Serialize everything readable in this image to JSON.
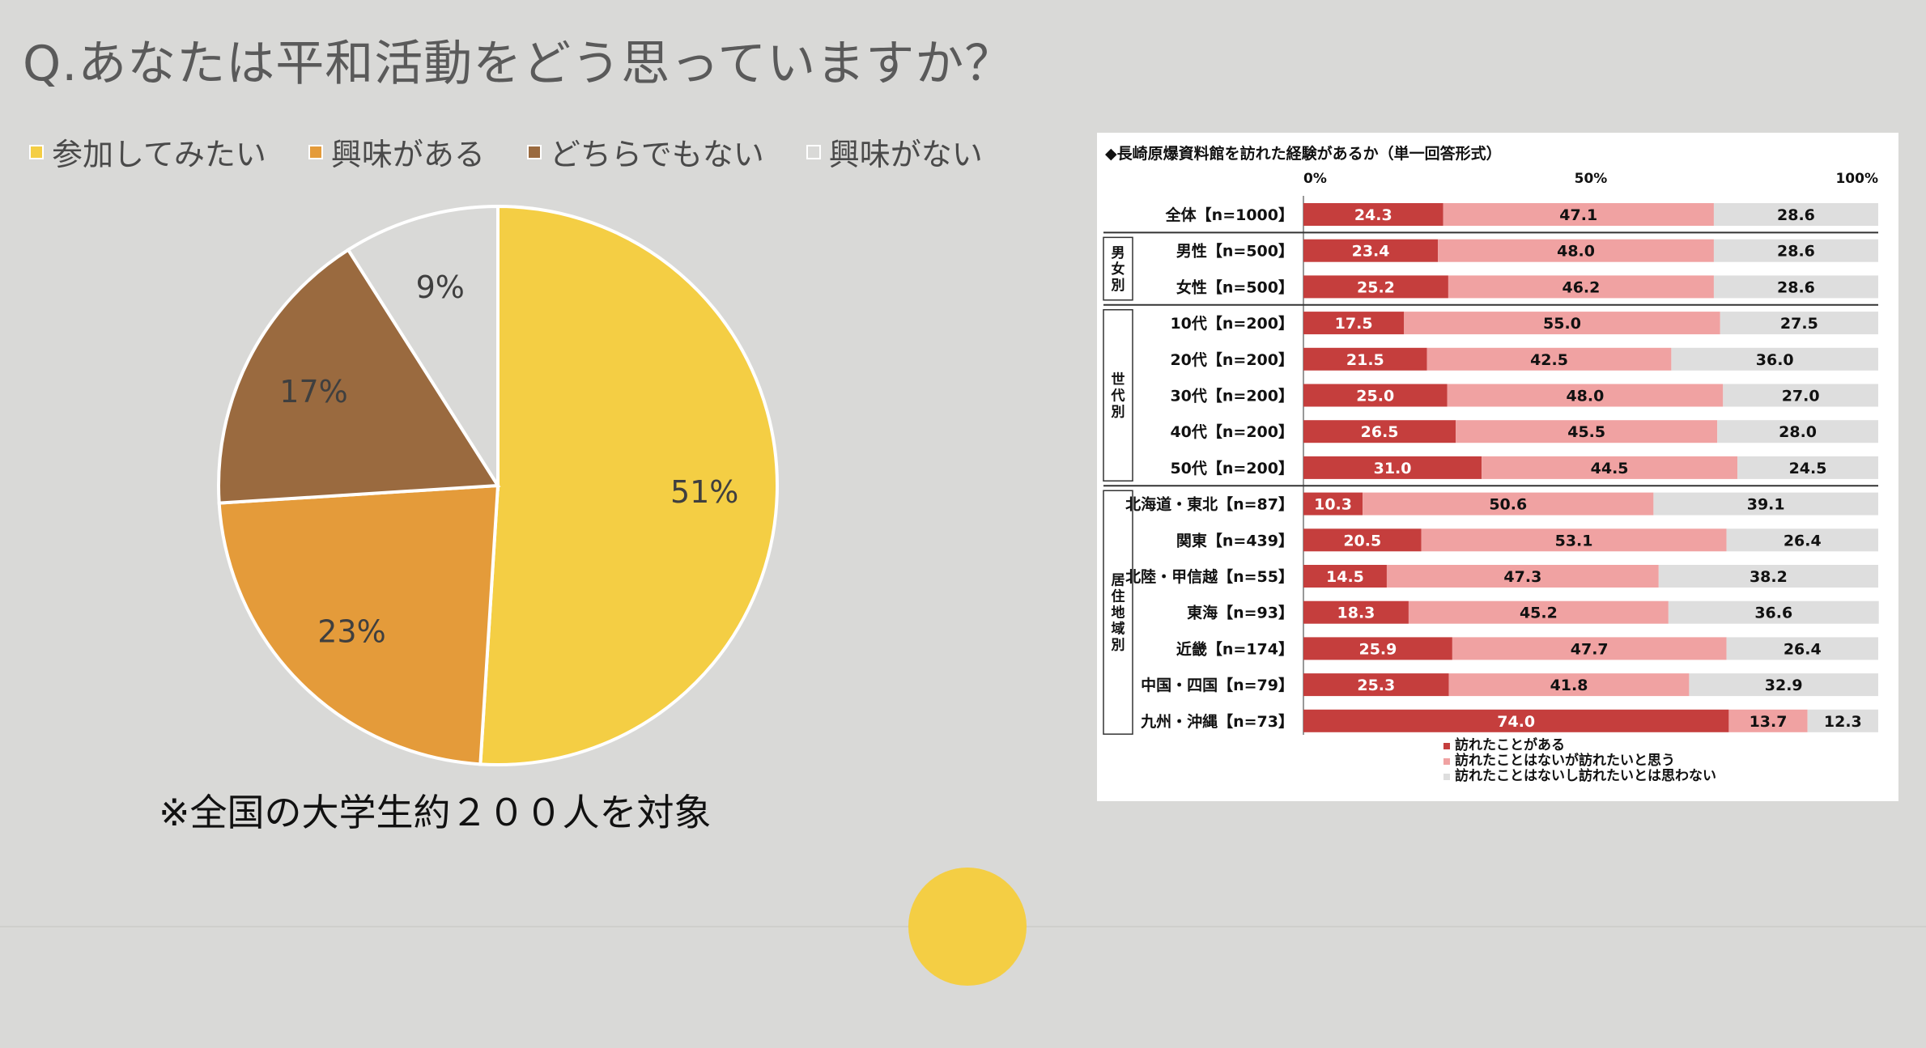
{
  "title": "Q.あなたは平和活動をどう思っていますか？",
  "note": "※全国の大学生約２００人を対象",
  "chart_data": [
    {
      "type": "pie",
      "title": "Q.あなたは平和活動をどう思っていますか？",
      "categories": [
        "参加してみたい",
        "興味がある",
        "どちらでもない",
        "興味がない"
      ],
      "values": [
        51,
        23,
        17,
        9
      ],
      "labels": [
        "51%",
        "23%",
        "17%",
        "9%"
      ],
      "colors": [
        "#f4ce44",
        "#e49b3a",
        "#9a6a3f",
        "#d9d9d7"
      ],
      "legend": "top"
    },
    {
      "type": "bar",
      "orientation": "horizontal",
      "stacked": true,
      "title": "◆長崎原爆資料館を訪れた経験があるか（単一回答形式）",
      "xlim": [
        0,
        100
      ],
      "ticks": [
        "0%",
        "50%",
        "100%"
      ],
      "series": [
        {
          "name": "訪れたことがある",
          "color": "#c53e3d"
        },
        {
          "name": "訪れたことはないが訪れたいと思う",
          "color": "#f0a2a2"
        },
        {
          "name": "訪れたことはないし訪れたいとは思わない",
          "color": "#dedede"
        }
      ],
      "groups": [
        {
          "label": "",
          "categories": [
            "全体【n=1000】"
          ],
          "values": [
            [
              24.3,
              47.1,
              28.6
            ]
          ]
        },
        {
          "label": "男女別",
          "categories": [
            "男性【n=500】",
            "女性【n=500】"
          ],
          "values": [
            [
              23.4,
              48.0,
              28.6
            ],
            [
              25.2,
              46.2,
              28.6
            ]
          ]
        },
        {
          "label": "世代別",
          "categories": [
            "10代【n=200】",
            "20代【n=200】",
            "30代【n=200】",
            "40代【n=200】",
            "50代【n=200】"
          ],
          "values": [
            [
              17.5,
              55.0,
              27.5
            ],
            [
              21.5,
              42.5,
              36.0
            ],
            [
              25.0,
              48.0,
              27.0
            ],
            [
              26.5,
              45.5,
              28.0
            ],
            [
              31.0,
              44.5,
              24.5
            ]
          ]
        },
        {
          "label": "居住地域別",
          "categories": [
            "北海道・東北【n=87】",
            "関東【n=439】",
            "北陸・甲信越【n=55】",
            "東海【n=93】",
            "近畿【n=174】",
            "中国・四国【n=79】",
            "九州・沖縄【n=73】"
          ],
          "values": [
            [
              10.3,
              50.6,
              39.1
            ],
            [
              20.5,
              53.1,
              26.4
            ],
            [
              14.5,
              47.3,
              38.2
            ],
            [
              18.3,
              45.2,
              36.6
            ],
            [
              25.9,
              47.7,
              26.4
            ],
            [
              25.3,
              41.8,
              32.9
            ],
            [
              74.0,
              13.7,
              12.3
            ]
          ]
        }
      ],
      "value_labels": [
        [
          "24.3",
          "47.1",
          "28.6"
        ],
        [
          "23.4",
          "48.0",
          "28.6"
        ],
        [
          "25.2",
          "46.2",
          "28.6"
        ],
        [
          "17.5",
          "55.0",
          "27.5"
        ],
        [
          "21.5",
          "42.5",
          "36.0"
        ],
        [
          "25.0",
          "48.0",
          "27.0"
        ],
        [
          "26.5",
          "45.5",
          "28.0"
        ],
        [
          "31.0",
          "44.5",
          "24.5"
        ],
        [
          "10.3",
          "50.6",
          "39.1"
        ],
        [
          "20.5",
          "53.1",
          "26.4"
        ],
        [
          "14.5",
          "47.3",
          "38.2"
        ],
        [
          "18.3",
          "45.2",
          "36.6"
        ],
        [
          "25.9",
          "47.7",
          "26.4"
        ],
        [
          "25.3",
          "41.8",
          "32.9"
        ],
        [
          "74.0",
          "13.7",
          "12.3"
        ]
      ]
    }
  ]
}
